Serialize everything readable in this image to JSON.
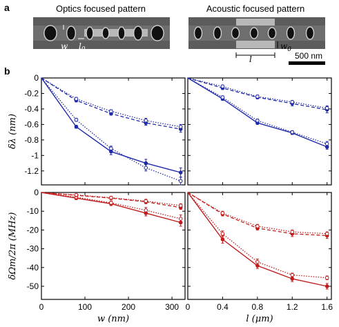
{
  "panel_a": {
    "letter": "a",
    "left_title": "Optics focused pattern",
    "right_title": "Acoustic focused pattern",
    "left_labels": {
      "w": "w",
      "l0": "l",
      "l0_sub": "0"
    },
    "right_labels": {
      "l": "l",
      "w0": "w",
      "w0_sub": "0"
    },
    "scale_bar": "500 nm"
  },
  "panel_b": {
    "letter": "b"
  },
  "chart_data": [
    {
      "type": "line",
      "id": "top-left",
      "ylabel": "δλ (nm)",
      "xlim": [
        0,
        330
      ],
      "ylim": [
        -1.38,
        0
      ],
      "yticks": [
        0,
        -0.2,
        -0.4,
        -0.6,
        -0.8,
        -1,
        -1.2
      ],
      "ytick_labels": [
        "0",
        "-0.2",
        "-0.4",
        "-0.6",
        "-0.8",
        "-1",
        "-1.2"
      ],
      "xticks": [
        0,
        100,
        200,
        300
      ],
      "series": [
        {
          "style": "solid",
          "marker": "filled",
          "color": "#1f2aa8",
          "x": [
            0,
            80,
            160,
            240,
            320
          ],
          "y": [
            0,
            -0.63,
            -0.95,
            -1.1,
            -1.22
          ],
          "err": [
            0,
            0.02,
            0.04,
            0.05,
            0.06
          ]
        },
        {
          "style": "dotted",
          "marker": "open",
          "color": "#1f2aa8",
          "x": [
            0,
            80,
            160,
            240,
            320
          ],
          "y": [
            0,
            -0.54,
            -0.91,
            -1.16,
            -1.33
          ],
          "err": [
            0,
            0.02,
            0.03,
            0.04,
            0.05
          ]
        },
        {
          "style": "dashed",
          "marker": "filled",
          "color": "#1f2aa8",
          "x": [
            0,
            80,
            160,
            240,
            320
          ],
          "y": [
            0,
            -0.29,
            -0.46,
            -0.58,
            -0.66
          ],
          "err": [
            0,
            0.02,
            0.02,
            0.03,
            0.04
          ]
        },
        {
          "style": "dotted",
          "marker": "open",
          "color": "#1f2aa8",
          "x": [
            0,
            80,
            160,
            240,
            320
          ],
          "y": [
            0,
            -0.27,
            -0.43,
            -0.55,
            -0.63
          ],
          "err": [
            0,
            0.02,
            0.02,
            0.03,
            0.03
          ]
        }
      ]
    },
    {
      "type": "line",
      "id": "top-right",
      "xlim": [
        0,
        1.65
      ],
      "ylim": [
        -1.38,
        0
      ],
      "yticks": [
        0,
        -0.2,
        -0.4,
        -0.6,
        -0.8,
        -1,
        -1.2
      ],
      "xticks": [
        0,
        0.4,
        0.8,
        1.2,
        1.6
      ],
      "series": [
        {
          "style": "solid",
          "marker": "filled",
          "color": "#1f2aa8",
          "x": [
            0,
            0.4,
            0.8,
            1.2,
            1.6
          ],
          "y": [
            0,
            -0.27,
            -0.58,
            -0.71,
            -0.89
          ],
          "err": [
            0,
            0.02,
            0.02,
            0.02,
            0.03
          ]
        },
        {
          "style": "dotted",
          "marker": "open",
          "color": "#1f2aa8",
          "x": [
            0,
            0.4,
            0.8,
            1.2,
            1.6
          ],
          "y": [
            0,
            -0.25,
            -0.55,
            -0.7,
            -0.85
          ],
          "err": [
            0,
            0.02,
            0.02,
            0.02,
            0.03
          ]
        },
        {
          "style": "dashed",
          "marker": "filled",
          "color": "#1f2aa8",
          "x": [
            0,
            0.4,
            0.8,
            1.2,
            1.6
          ],
          "y": [
            0,
            -0.13,
            -0.25,
            -0.33,
            -0.41
          ],
          "err": [
            0,
            0.02,
            0.02,
            0.03,
            0.04
          ]
        },
        {
          "style": "dotted",
          "marker": "open",
          "color": "#1f2aa8",
          "x": [
            0,
            0.4,
            0.8,
            1.2,
            1.6
          ],
          "y": [
            0,
            -0.11,
            -0.24,
            -0.31,
            -0.39
          ],
          "err": [
            0,
            0.02,
            0.02,
            0.02,
            0.03
          ]
        }
      ]
    },
    {
      "type": "line",
      "id": "bottom-left",
      "ylabel": "δΩm/2π (MHz)",
      "xlabel": "w (nm)",
      "xlim": [
        0,
        330
      ],
      "ylim": [
        -57,
        0
      ],
      "yticks": [
        0,
        -10,
        -20,
        -30,
        -40,
        -50
      ],
      "ytick_labels": [
        "0",
        "-10",
        "-20",
        "-30",
        "-40",
        "-50"
      ],
      "xticks": [
        0,
        100,
        200,
        300
      ],
      "xtick_labels": [
        "0",
        "100",
        "200",
        "300"
      ],
      "series": [
        {
          "style": "solid",
          "marker": "filled",
          "color": "#c01b1b",
          "x": [
            0,
            80,
            160,
            240,
            320
          ],
          "y": [
            0,
            -3,
            -6,
            -11,
            -16
          ],
          "err": [
            0,
            0.8,
            1,
            1.5,
            2
          ]
        },
        {
          "style": "dotted",
          "marker": "open",
          "color": "#c01b1b",
          "x": [
            0,
            80,
            160,
            240,
            320
          ],
          "y": [
            0,
            -2.5,
            -5.5,
            -9.5,
            -14
          ],
          "err": [
            0,
            0.8,
            1,
            1.5,
            2
          ]
        },
        {
          "style": "dashed",
          "marker": "filled",
          "color": "#c01b1b",
          "x": [
            0,
            80,
            160,
            240,
            320
          ],
          "y": [
            0,
            -1.5,
            -3,
            -5,
            -8
          ],
          "err": [
            0,
            0.6,
            0.8,
            1,
            1
          ]
        },
        {
          "style": "dotted",
          "marker": "open",
          "color": "#c01b1b",
          "x": [
            0,
            80,
            160,
            240,
            320
          ],
          "y": [
            0,
            -1.3,
            -2.8,
            -4.6,
            -7
          ],
          "err": [
            0,
            0.6,
            0.8,
            1,
            1
          ]
        }
      ]
    },
    {
      "type": "line",
      "id": "bottom-right",
      "xlabel": "l (μm)",
      "xlim": [
        0,
        1.65
      ],
      "ylim": [
        -57,
        0
      ],
      "yticks": [
        0,
        -10,
        -20,
        -30,
        -40,
        -50
      ],
      "xticks": [
        0,
        0.4,
        0.8,
        1.2,
        1.6
      ],
      "xtick_labels": [
        "0",
        "0.4",
        "0.8",
        "1.2",
        "1.6"
      ],
      "series": [
        {
          "style": "solid",
          "marker": "filled",
          "color": "#c01b1b",
          "x": [
            0,
            0.4,
            0.8,
            1.2,
            1.6
          ],
          "y": [
            0,
            -25,
            -39,
            -46,
            -50
          ],
          "err": [
            0,
            2,
            1.5,
            1.5,
            1.5
          ]
        },
        {
          "style": "dotted",
          "marker": "open",
          "color": "#c01b1b",
          "x": [
            0,
            0.4,
            0.8,
            1.2,
            1.6
          ],
          "y": [
            0,
            -22,
            -37,
            -44,
            -45.5
          ],
          "err": [
            0,
            1.5,
            1.5,
            1,
            1
          ]
        },
        {
          "style": "dashed",
          "marker": "filled",
          "color": "#c01b1b",
          "x": [
            0,
            0.4,
            0.8,
            1.2,
            1.6
          ],
          "y": [
            0,
            -11.5,
            -19,
            -22,
            -23
          ],
          "err": [
            0,
            1,
            1,
            1.5,
            1.5
          ]
        },
        {
          "style": "dotted",
          "marker": "open",
          "color": "#c01b1b",
          "x": [
            0,
            0.4,
            0.8,
            1.2,
            1.6
          ],
          "y": [
            0,
            -11,
            -18,
            -21,
            -22
          ],
          "err": [
            0,
            1,
            1,
            1,
            1
          ]
        }
      ]
    }
  ]
}
